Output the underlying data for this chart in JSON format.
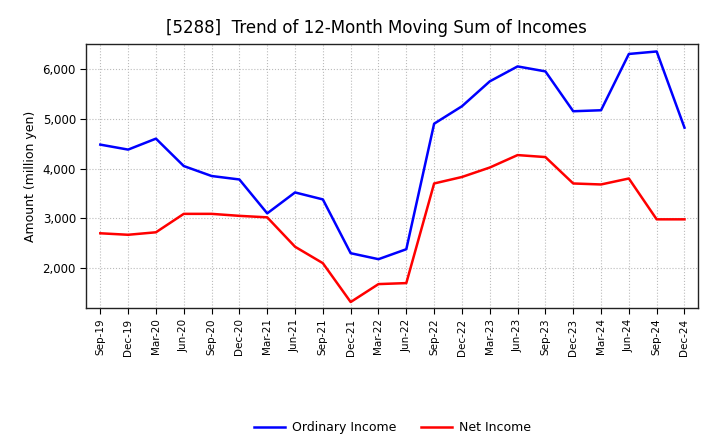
{
  "title": "[5288]  Trend of 12-Month Moving Sum of Incomes",
  "ylabel": "Amount (million yen)",
  "x_labels": [
    "Sep-19",
    "Dec-19",
    "Mar-20",
    "Jun-20",
    "Sep-20",
    "Dec-20",
    "Mar-21",
    "Jun-21",
    "Sep-21",
    "Dec-21",
    "Mar-22",
    "Jun-22",
    "Sep-22",
    "Dec-22",
    "Mar-23",
    "Jun-23",
    "Sep-23",
    "Dec-23",
    "Mar-24",
    "Jun-24",
    "Sep-24",
    "Dec-24"
  ],
  "ordinary_income": [
    4480,
    4380,
    4600,
    4050,
    3850,
    3780,
    3100,
    3520,
    3380,
    2300,
    2180,
    2380,
    4900,
    5250,
    5750,
    6050,
    5950,
    5150,
    5170,
    6300,
    6350,
    4820
  ],
  "net_income": [
    2700,
    2670,
    2720,
    3090,
    3090,
    3050,
    3020,
    2430,
    2100,
    1320,
    1680,
    1700,
    3700,
    3830,
    4020,
    4270,
    4230,
    3700,
    3680,
    3800,
    2980,
    2980
  ],
  "ordinary_color": "#0000ff",
  "net_color": "#ff0000",
  "ylim": [
    1200,
    6500
  ],
  "yticks": [
    2000,
    3000,
    4000,
    5000,
    6000
  ],
  "grid_color": "#bbbbbb",
  "background_color": "#ffffff",
  "title_fontsize": 12,
  "label_fontsize": 9
}
